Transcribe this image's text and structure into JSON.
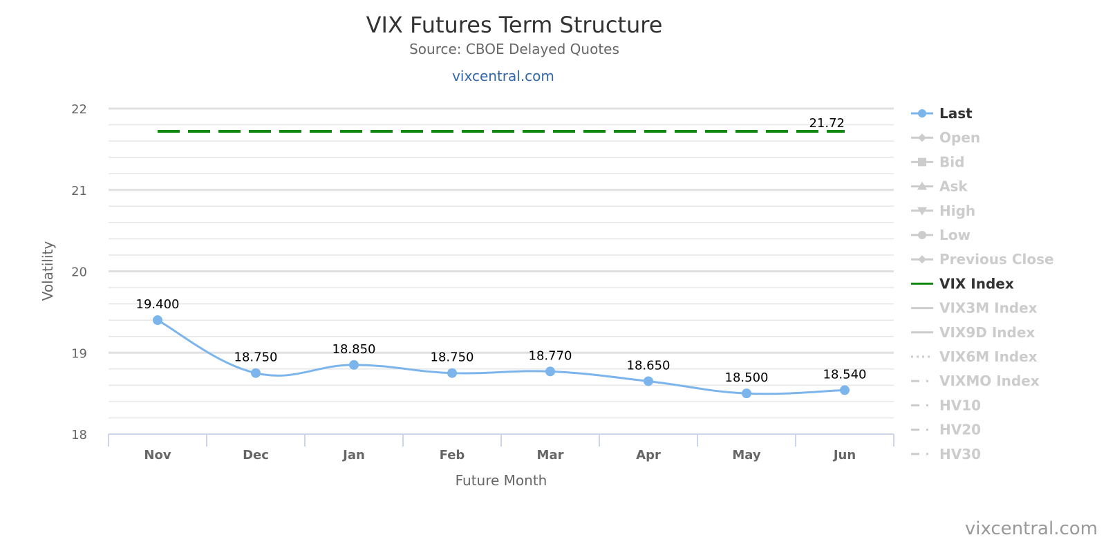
{
  "chart_data": {
    "type": "line",
    "title": "VIX Futures Term Structure",
    "subtitle": "Source: CBOE Delayed Quotes",
    "subtitle_link": "vixcentral.com",
    "xlabel": "Future Month",
    "ylabel": "Volatility",
    "categories": [
      "Nov",
      "Dec",
      "Jan",
      "Feb",
      "Mar",
      "Apr",
      "May",
      "Jun"
    ],
    "ylim": [
      18,
      22
    ],
    "yticks": [
      18,
      19,
      20,
      21,
      22
    ],
    "grid": true,
    "legend_placement": "right",
    "series": [
      {
        "name": "Last",
        "values": [
          19.4,
          18.75,
          18.85,
          18.75,
          18.77,
          18.65,
          18.5,
          18.54
        ],
        "labels": [
          "19.400",
          "18.750",
          "18.850",
          "18.750",
          "18.770",
          "18.650",
          "18.500",
          "18.540"
        ],
        "color": "#7cb5ec"
      },
      {
        "name": "VIX Index",
        "value": 21.72,
        "label": "21.72",
        "color": "#118811",
        "style": "dashed"
      }
    ],
    "legend": [
      {
        "name": "Last",
        "active": true,
        "symbol": "circle",
        "color": "#7cb5ec"
      },
      {
        "name": "Open",
        "active": false,
        "symbol": "diamond"
      },
      {
        "name": "Bid",
        "active": false,
        "symbol": "square"
      },
      {
        "name": "Ask",
        "active": false,
        "symbol": "triangle"
      },
      {
        "name": "High",
        "active": false,
        "symbol": "triangle-down"
      },
      {
        "name": "Low",
        "active": false,
        "symbol": "circle"
      },
      {
        "name": "Previous Close",
        "active": false,
        "symbol": "diamond"
      },
      {
        "name": "VIX Index",
        "active": true,
        "symbol": "line",
        "color": "#118811"
      },
      {
        "name": "VIX3M Index",
        "active": false,
        "symbol": "line"
      },
      {
        "name": "VIX9D Index",
        "active": false,
        "symbol": "line"
      },
      {
        "name": "VIX6M Index",
        "active": false,
        "symbol": "dotted"
      },
      {
        "name": "VIXMO Index",
        "active": false,
        "symbol": "dashdot"
      },
      {
        "name": "HV10",
        "active": false,
        "symbol": "dashdot"
      },
      {
        "name": "HV20",
        "active": false,
        "symbol": "dashdot"
      },
      {
        "name": "HV30",
        "active": false,
        "symbol": "dashdot"
      }
    ],
    "credit": "vixcentral.com"
  }
}
